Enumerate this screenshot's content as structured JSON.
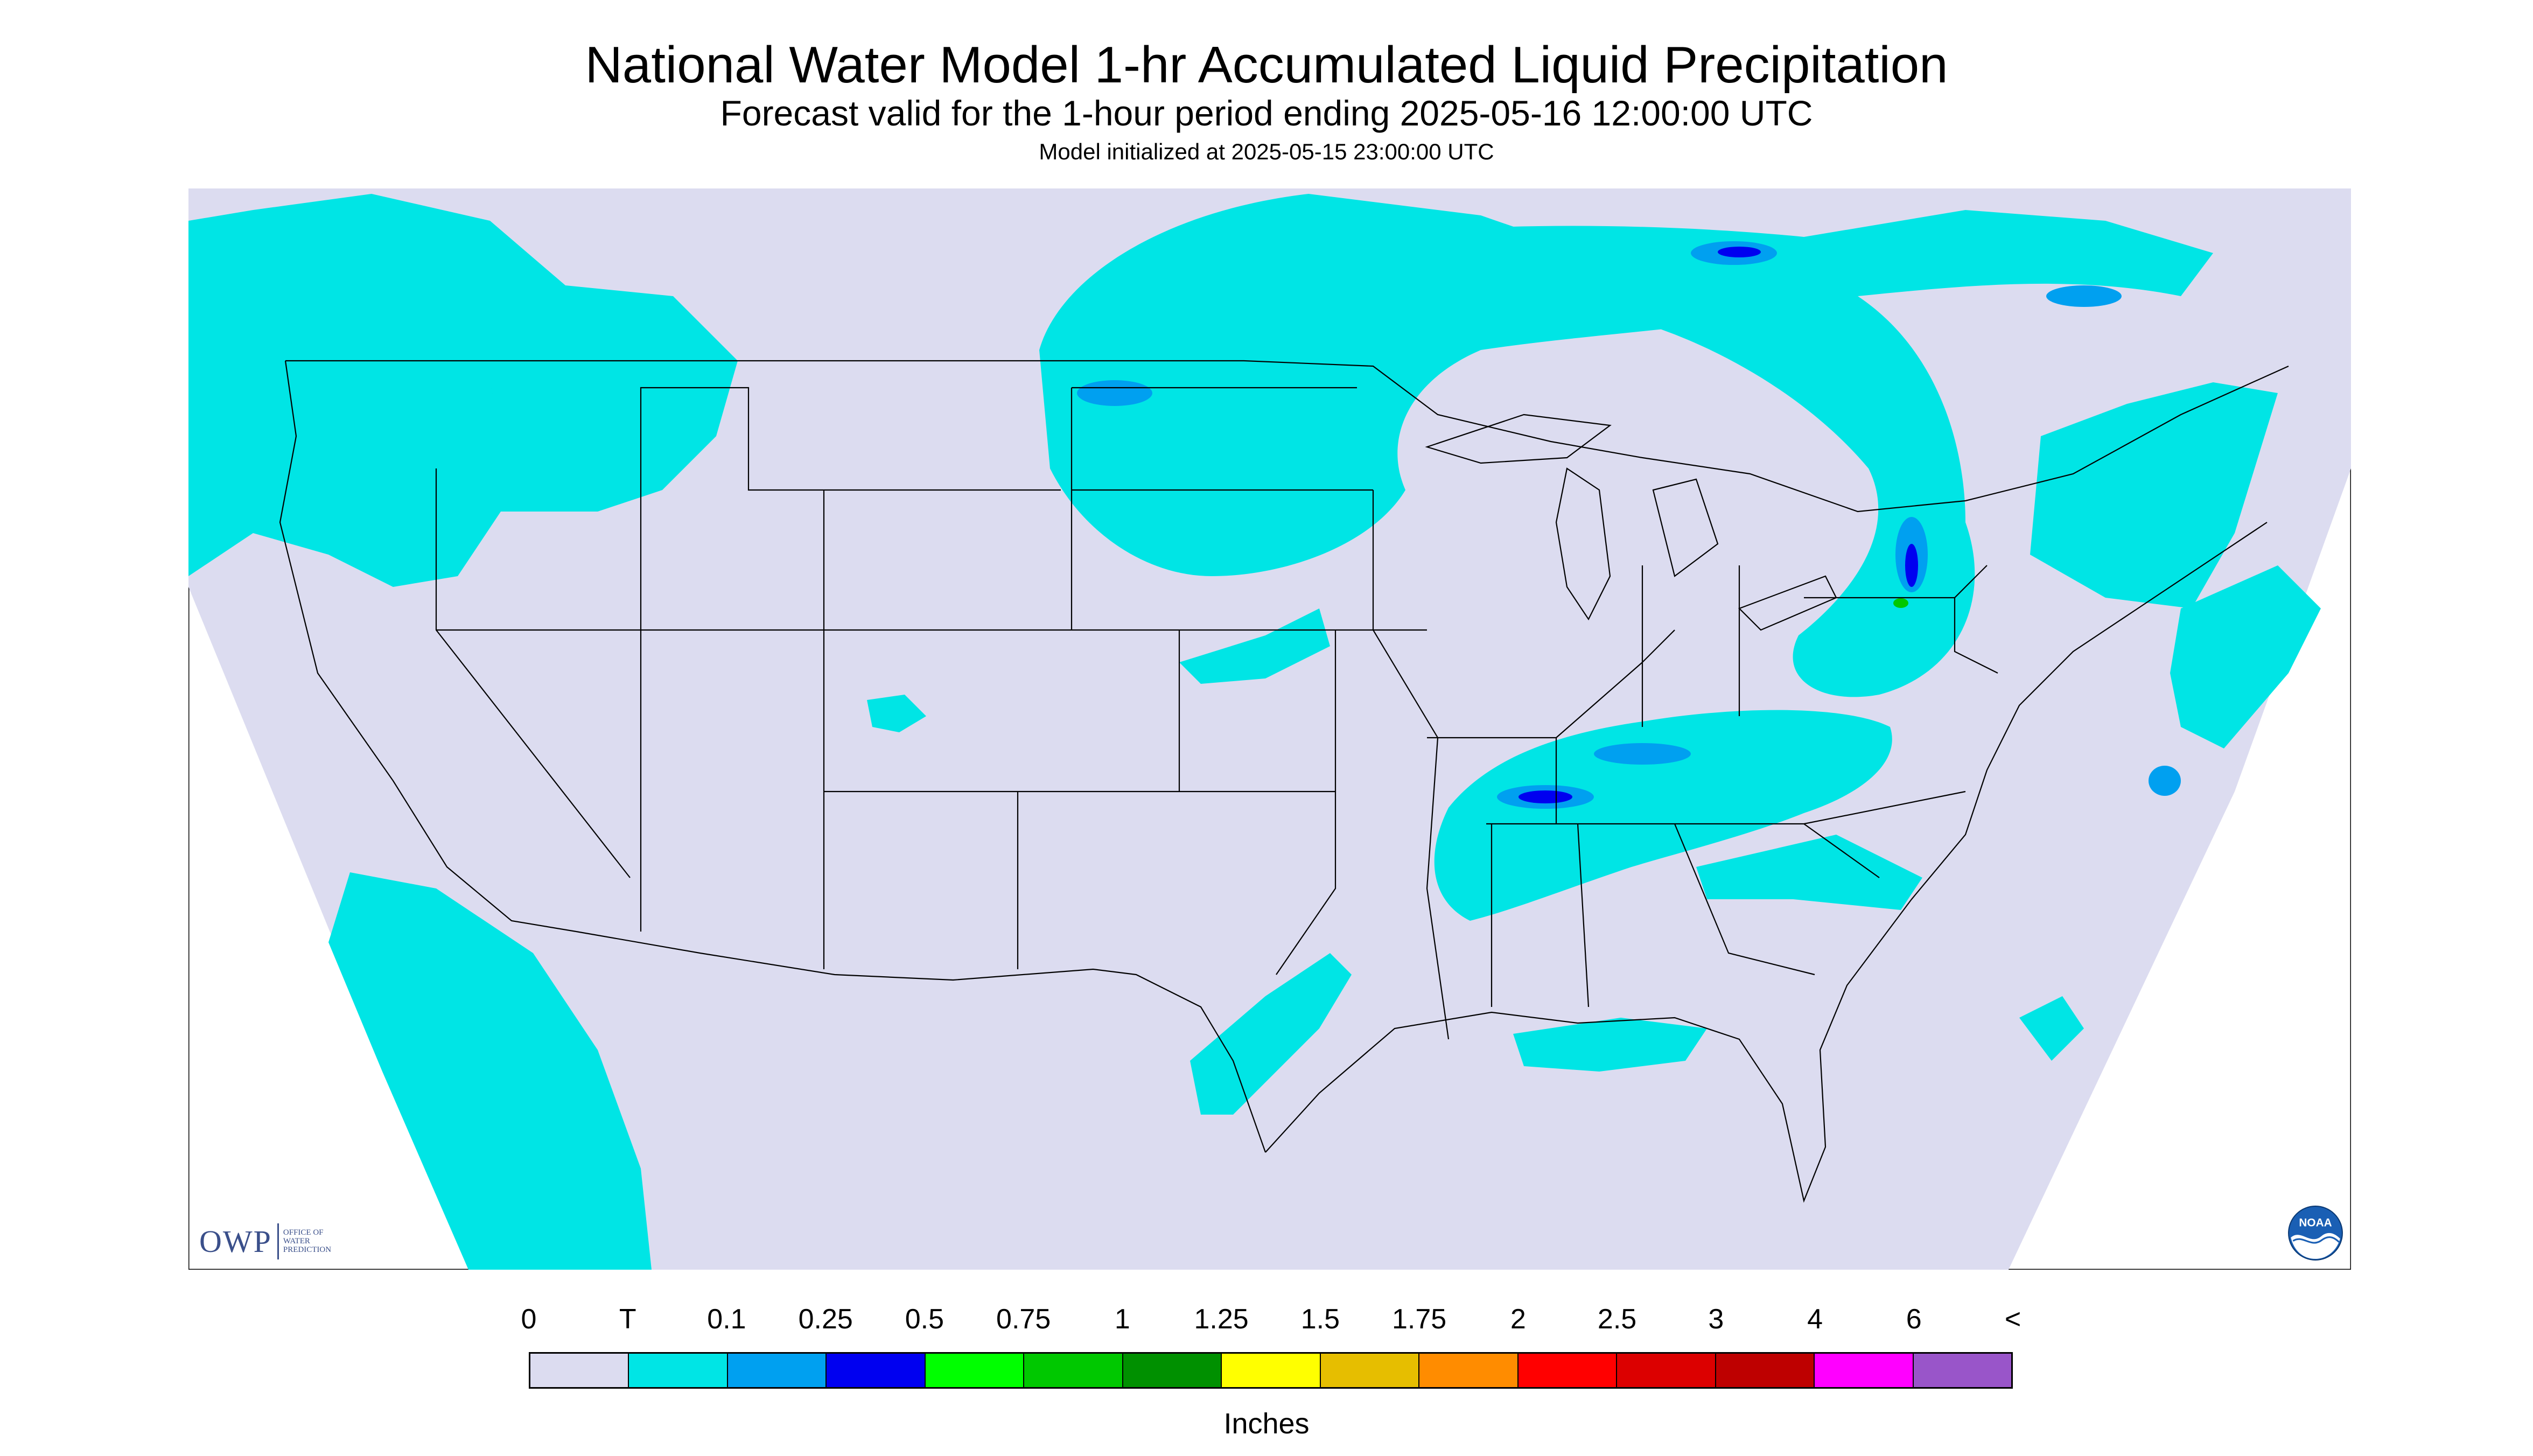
{
  "header": {
    "title": "National Water Model 1-hr Accumulated Liquid Precipitation",
    "subtitle": "Forecast valid for the 1-hour period ending 2025-05-16 12:00:00 UTC",
    "init": "Model initialized at 2025-05-15 23:00:00 UTC"
  },
  "logos": {
    "owp_mark": "OWP",
    "owp_line1": "OFFICE OF",
    "owp_line2": "WATER",
    "owp_line3": "PREDICTION",
    "noaa_text": "NOAA"
  },
  "legend": {
    "units": "Inches",
    "tick_labels": [
      "0",
      "T",
      "0.1",
      "0.25",
      "0.5",
      "0.75",
      "1",
      "1.25",
      "1.5",
      "1.75",
      "2",
      "2.5",
      "3",
      "4",
      "6",
      "<"
    ],
    "colors": [
      "#dcdcf0",
      "#00e5e5",
      "#00a0f0",
      "#0000f0",
      "#00ff00",
      "#00c800",
      "#009000",
      "#ffff00",
      "#e6be00",
      "#ff8c00",
      "#ff0000",
      "#dc0000",
      "#be0000",
      "#ff00ff",
      "#9955c9"
    ]
  },
  "colors": {
    "no_precip": "#dcdcf0",
    "trace": "#00e5e5",
    "light": "#00a0f0",
    "moderate": "#0000f0",
    "heavy": "#00c800",
    "boundary": "#000000"
  }
}
